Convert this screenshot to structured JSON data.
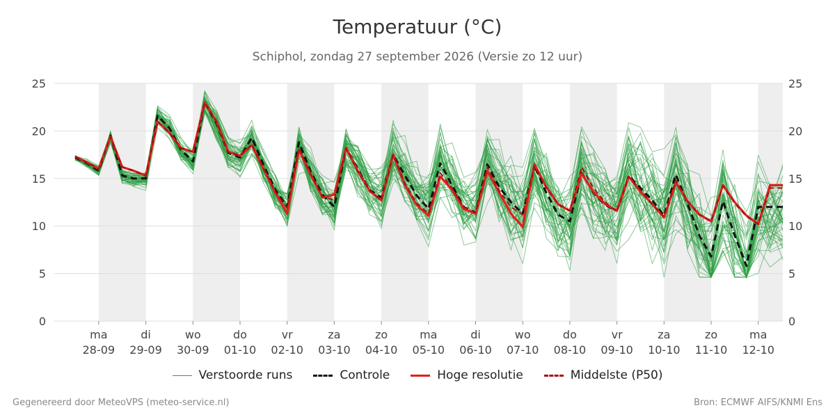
{
  "title": "Temperatuur (°C)",
  "subtitle": "Schiphol, zondag 27 september 2026 (Versie zo 12 uur)",
  "footer": {
    "left": "Gegenereerd door MeteoVPS (meteo-service.nl)",
    "right": "Bron: ECMWF AIFS/KNMI Ens"
  },
  "colors": {
    "ensemble": "#2e9e44",
    "controle": "#111111",
    "hoge_resolutie": "#e0201b",
    "p50": "#a31212",
    "weekend_band": "#eeeeee",
    "grid": "#dddddd"
  },
  "legend": [
    {
      "label": "Verstoorde runs",
      "key": "ensemble",
      "style": "thin"
    },
    {
      "label": "Controle",
      "key": "controle",
      "style": "dashed"
    },
    {
      "label": "Hoge resolutie",
      "key": "hoge_resolutie",
      "style": "solid"
    },
    {
      "label": "Middelste (P50)",
      "key": "p50",
      "style": "dashed"
    }
  ],
  "chart_data": {
    "type": "line",
    "ylim": [
      0,
      25
    ],
    "yticks": [
      0,
      5,
      10,
      15,
      20,
      25
    ],
    "grid": true,
    "x_start": "2026-09-27T12:00",
    "x_end": "2026-10-12T12:30",
    "x_ticks": [
      {
        "date": "2026-09-28",
        "day": "ma",
        "label": "28-09"
      },
      {
        "date": "2026-09-29",
        "day": "di",
        "label": "29-09"
      },
      {
        "date": "2026-09-30",
        "day": "wo",
        "label": "30-09"
      },
      {
        "date": "2026-10-01",
        "day": "do",
        "label": "01-10"
      },
      {
        "date": "2026-10-02",
        "day": "vr",
        "label": "02-10"
      },
      {
        "date": "2026-10-03",
        "day": "za",
        "label": "03-10"
      },
      {
        "date": "2026-10-04",
        "day": "zo",
        "label": "04-10"
      },
      {
        "date": "2026-10-05",
        "day": "ma",
        "label": "05-10"
      },
      {
        "date": "2026-10-06",
        "day": "di",
        "label": "06-10"
      },
      {
        "date": "2026-10-07",
        "day": "wo",
        "label": "07-10"
      },
      {
        "date": "2026-10-08",
        "day": "do",
        "label": "08-10"
      },
      {
        "date": "2026-10-09",
        "day": "vr",
        "label": "09-10"
      },
      {
        "date": "2026-10-10",
        "day": "za",
        "label": "10-10"
      },
      {
        "date": "2026-10-11",
        "day": "zo",
        "label": "11-10"
      },
      {
        "date": "2026-10-12",
        "day": "ma",
        "label": "12-10"
      }
    ],
    "shaded_days": [
      "2026-09-28",
      "2026-09-30",
      "2026-10-02",
      "2026-10-04",
      "2026-10-06",
      "2026-10-08",
      "2026-10-10",
      "2026-10-12"
    ],
    "x": [
      "2026-09-27T12:00",
      "2026-09-27T18:00",
      "2026-09-28T00:00",
      "2026-09-28T06:00",
      "2026-09-28T12:00",
      "2026-09-28T18:00",
      "2026-09-29T00:00",
      "2026-09-29T06:00",
      "2026-09-29T12:00",
      "2026-09-29T18:00",
      "2026-09-30T00:00",
      "2026-09-30T06:00",
      "2026-09-30T12:00",
      "2026-09-30T18:00",
      "2026-10-01T00:00",
      "2026-10-01T06:00",
      "2026-10-01T12:00",
      "2026-10-01T18:00",
      "2026-10-02T00:00",
      "2026-10-02T06:00",
      "2026-10-02T12:00",
      "2026-10-02T18:00",
      "2026-10-03T00:00",
      "2026-10-03T06:00",
      "2026-10-03T12:00",
      "2026-10-03T18:00",
      "2026-10-04T00:00",
      "2026-10-04T06:00",
      "2026-10-04T12:00",
      "2026-10-04T18:00",
      "2026-10-05T00:00",
      "2026-10-05T06:00",
      "2026-10-05T12:00",
      "2026-10-05T18:00",
      "2026-10-06T00:00",
      "2026-10-06T06:00",
      "2026-10-06T12:00",
      "2026-10-06T18:00",
      "2026-10-07T00:00",
      "2026-10-07T06:00",
      "2026-10-07T12:00",
      "2026-10-07T18:00",
      "2026-10-08T00:00",
      "2026-10-08T06:00",
      "2026-10-08T12:00",
      "2026-10-08T18:00",
      "2026-10-09T00:00",
      "2026-10-09T06:00",
      "2026-10-09T12:00",
      "2026-10-09T18:00",
      "2026-10-10T00:00",
      "2026-10-10T06:00",
      "2026-10-10T12:00",
      "2026-10-10T18:00",
      "2026-10-11T00:00",
      "2026-10-11T06:00",
      "2026-10-11T12:00",
      "2026-10-11T18:00",
      "2026-10-12T00:00",
      "2026-10-12T06:00",
      "2026-10-12T12:30"
    ],
    "series": [
      {
        "name": "Controle",
        "values": [
          17.2,
          16.6,
          15.8,
          19.5,
          15.3,
          15.0,
          15.0,
          21.6,
          20.3,
          18.0,
          16.8,
          23.0,
          20.8,
          17.7,
          17.2,
          19.3,
          16.4,
          13.8,
          12.0,
          18.8,
          15.7,
          13.3,
          12.0,
          18.2,
          16.0,
          13.8,
          13.0,
          17.5,
          15.3,
          13.2,
          11.8,
          16.6,
          14.3,
          12.0,
          11.4,
          16.5,
          14.1,
          12.5,
          11.3,
          16.3,
          13.5,
          11.2,
          10.5,
          15.6,
          13.5,
          12.2,
          11.6,
          15.3,
          14.0,
          12.7,
          11.1,
          15.4,
          12.3,
          9.0,
          6.8,
          12.6,
          9.0,
          5.8,
          12.0,
          12.0,
          12.0
        ]
      },
      {
        "name": "Hoge resolutie",
        "values": [
          17.3,
          16.7,
          16.0,
          19.4,
          16.2,
          15.8,
          15.3,
          21.0,
          19.8,
          18.2,
          17.8,
          23.0,
          21.0,
          17.8,
          17.4,
          18.5,
          16.0,
          13.5,
          11.3,
          18.0,
          15.4,
          13.0,
          13.3,
          18.2,
          15.8,
          13.7,
          12.7,
          17.5,
          14.3,
          12.2,
          11.1,
          15.2,
          13.8,
          11.8,
          11.3,
          15.8,
          13.5,
          11.3,
          9.9,
          16.5,
          14.1,
          12.3,
          11.6,
          15.5,
          13.6,
          12.3,
          11.6,
          15.2,
          13.6,
          12.3,
          10.9,
          14.6,
          12.6,
          11.2,
          10.5,
          14.3,
          12.5,
          11.1,
          10.2,
          14.3,
          14.3
        ]
      },
      {
        "name": "Middelste (P50)",
        "values": [
          17.3,
          16.7,
          16.0,
          19.4,
          16.2,
          15.8,
          15.3,
          21.0,
          19.8,
          18.2,
          17.8,
          23.0,
          21.0,
          17.8,
          17.4,
          18.6,
          16.0,
          13.6,
          11.9,
          18.2,
          15.5,
          13.1,
          12.7,
          18.2,
          15.7,
          13.7,
          12.7,
          17.5,
          14.5,
          12.4,
          11.3,
          15.6,
          14.0,
          12.0,
          11.4,
          16.2,
          13.7,
          12.0,
          11.2,
          16.3,
          14.0,
          12.3,
          11.6,
          16.2,
          14.0,
          12.5,
          11.5,
          15.2,
          13.8,
          12.3,
          11.0,
          14.8,
          12.6,
          11.2,
          10.5,
          14.2,
          12.4,
          11.0,
          10.2,
          14.0,
          14.0
        ]
      }
    ],
    "ensemble_members": 50
  }
}
